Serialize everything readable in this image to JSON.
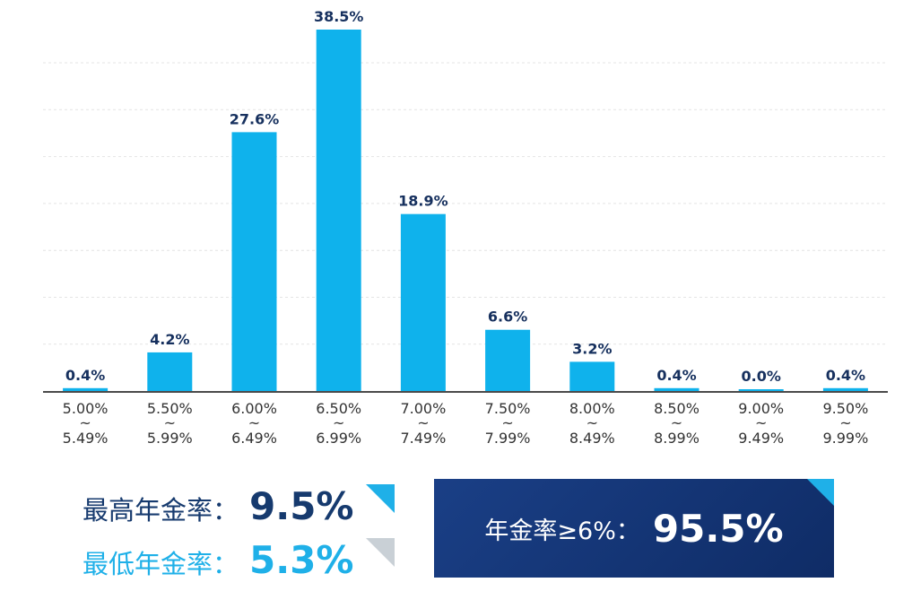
{
  "chart_data": {
    "type": "bar",
    "categories": [
      [
        "5.00%",
        "~",
        "5.49%"
      ],
      [
        "5.50%",
        "~",
        "5.99%"
      ],
      [
        "6.00%",
        "~",
        "6.49%"
      ],
      [
        "6.50%",
        "~",
        "6.99%"
      ],
      [
        "7.00%",
        "~",
        "7.49%"
      ],
      [
        "7.50%",
        "~",
        "7.99%"
      ],
      [
        "8.00%",
        "~",
        "8.49%"
      ],
      [
        "8.50%",
        "~",
        "8.99%"
      ],
      [
        "9.00%",
        "~",
        "9.49%"
      ],
      [
        "9.50%",
        "~",
        "9.99%"
      ]
    ],
    "values": [
      0.4,
      4.2,
      27.6,
      38.5,
      18.9,
      6.6,
      3.2,
      0.4,
      0.0,
      0.4
    ],
    "value_labels": [
      "0.4%",
      "4.2%",
      "27.6%",
      "38.5%",
      "18.9%",
      "6.6%",
      "3.2%",
      "0.4%",
      "0.0%",
      "0.4%"
    ],
    "ylim": [
      0,
      40
    ],
    "grid": true,
    "bar_color": "#0fb2ec",
    "label_color": "#16305e"
  },
  "summary": {
    "highest_label": "最高年金率：",
    "highest_value": "9.5%",
    "lowest_label": "最低年金率：",
    "lowest_value": "5.3%",
    "box_label": "年金率≥6%：",
    "box_value": "95.5%"
  },
  "colors": {
    "navy": "#163a6e",
    "cyan": "#1fb0e8",
    "box_bg": "#1a3f86"
  }
}
